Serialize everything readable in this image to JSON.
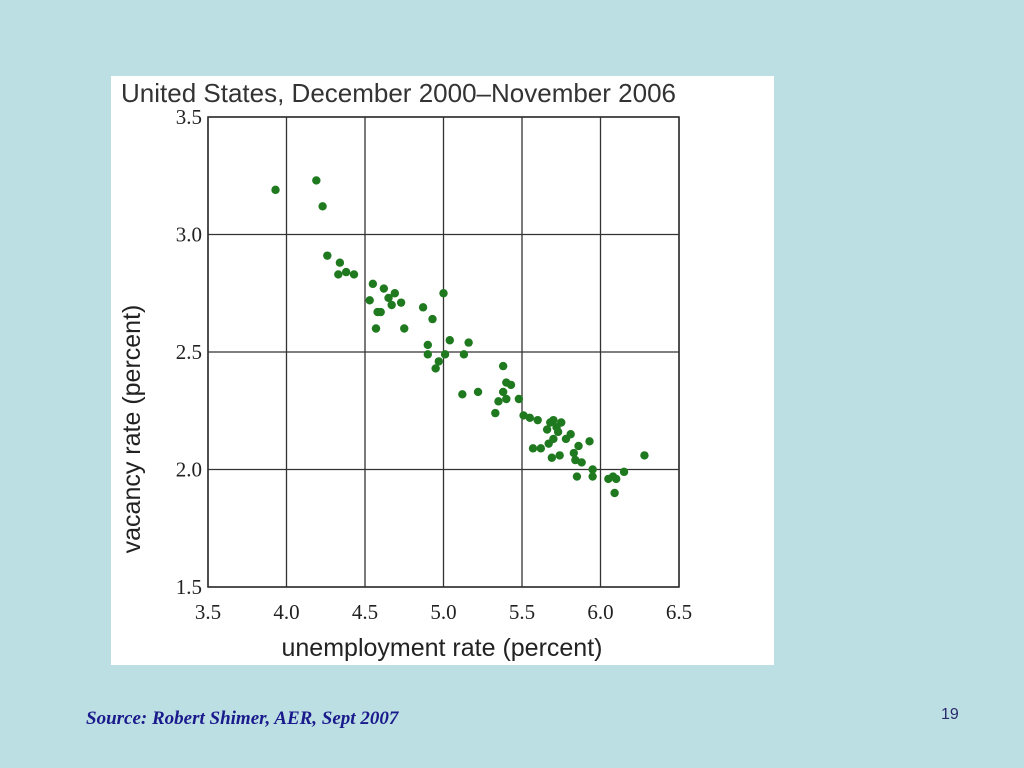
{
  "chart_data": {
    "type": "scatter",
    "title": "United States, December 2000–November 2006",
    "xlabel": "unemployment rate (percent)",
    "ylabel": "vacancy rate (percent)",
    "xlim": [
      3.5,
      6.5
    ],
    "ylim": [
      1.5,
      3.5
    ],
    "xticks": [
      "3.5",
      "4.0",
      "4.5",
      "5.0",
      "5.5",
      "6.0",
      "6.5"
    ],
    "yticks": [
      "1.5",
      "2.0",
      "2.5",
      "3.0",
      "3.5"
    ],
    "grid": true,
    "point_color": "#1f7a1f",
    "points": [
      [
        3.93,
        3.19
      ],
      [
        4.19,
        3.23
      ],
      [
        4.23,
        3.12
      ],
      [
        4.26,
        2.91
      ],
      [
        4.34,
        2.88
      ],
      [
        4.38,
        2.84
      ],
      [
        4.33,
        2.83
      ],
      [
        4.43,
        2.83
      ],
      [
        4.55,
        2.79
      ],
      [
        4.53,
        2.72
      ],
      [
        4.62,
        2.77
      ],
      [
        4.58,
        2.67
      ],
      [
        4.6,
        2.67
      ],
      [
        4.65,
        2.73
      ],
      [
        4.69,
        2.75
      ],
      [
        4.73,
        2.71
      ],
      [
        4.67,
        2.7
      ],
      [
        4.57,
        2.6
      ],
      [
        4.75,
        2.6
      ],
      [
        4.87,
        2.69
      ],
      [
        4.93,
        2.64
      ],
      [
        5.0,
        2.75
      ],
      [
        4.9,
        2.53
      ],
      [
        4.9,
        2.49
      ],
      [
        5.04,
        2.55
      ],
      [
        5.16,
        2.54
      ],
      [
        4.97,
        2.46
      ],
      [
        5.01,
        2.49
      ],
      [
        4.95,
        2.43
      ],
      [
        5.13,
        2.49
      ],
      [
        5.12,
        2.32
      ],
      [
        5.22,
        2.33
      ],
      [
        5.35,
        2.29
      ],
      [
        5.33,
        2.24
      ],
      [
        5.38,
        2.44
      ],
      [
        5.4,
        2.37
      ],
      [
        5.43,
        2.36
      ],
      [
        5.38,
        2.33
      ],
      [
        5.4,
        2.3
      ],
      [
        5.48,
        2.3
      ],
      [
        5.51,
        2.23
      ],
      [
        5.55,
        2.22
      ],
      [
        5.6,
        2.21
      ],
      [
        5.66,
        2.17
      ],
      [
        5.68,
        2.2
      ],
      [
        5.7,
        2.21
      ],
      [
        5.72,
        2.18
      ],
      [
        5.75,
        2.2
      ],
      [
        5.73,
        2.16
      ],
      [
        5.7,
        2.13
      ],
      [
        5.67,
        2.11
      ],
      [
        5.78,
        2.13
      ],
      [
        5.81,
        2.15
      ],
      [
        5.86,
        2.1
      ],
      [
        5.83,
        2.07
      ],
      [
        5.74,
        2.06
      ],
      [
        5.84,
        2.04
      ],
      [
        5.88,
        2.03
      ],
      [
        5.93,
        2.12
      ],
      [
        5.95,
        2.0
      ],
      [
        6.05,
        1.96
      ],
      [
        5.85,
        1.97
      ],
      [
        5.95,
        1.97
      ],
      [
        6.08,
        1.97
      ],
      [
        6.15,
        1.99
      ],
      [
        6.1,
        1.96
      ],
      [
        5.62,
        2.09
      ],
      [
        5.69,
        2.05
      ],
      [
        6.09,
        1.9
      ],
      [
        6.28,
        2.06
      ],
      [
        5.57,
        2.09
      ]
    ]
  },
  "footer": {
    "source": "Source: Robert Shimer, AER, Sept 2007",
    "page_number": "19"
  }
}
